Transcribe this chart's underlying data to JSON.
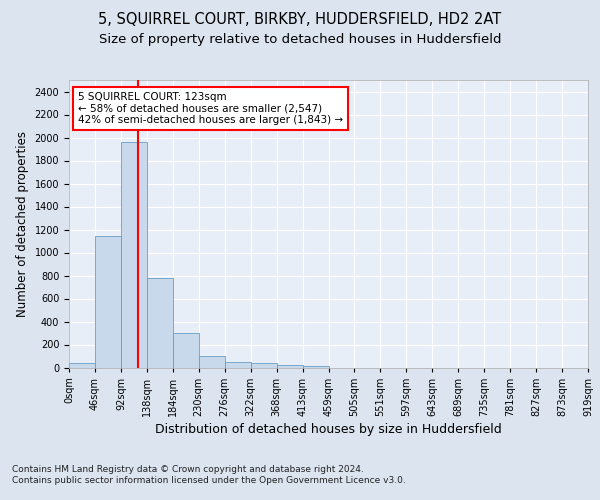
{
  "title1": "5, SQUIRREL COURT, BIRKBY, HUDDERSFIELD, HD2 2AT",
  "title2": "Size of property relative to detached houses in Huddersfield",
  "xlabel": "Distribution of detached houses by size in Huddersfield",
  "ylabel": "Number of detached properties",
  "footnote1": "Contains HM Land Registry data © Crown copyright and database right 2024.",
  "footnote2": "Contains public sector information licensed under the Open Government Licence v3.0.",
  "bin_labels": [
    "0sqm",
    "46sqm",
    "92sqm",
    "138sqm",
    "184sqm",
    "230sqm",
    "276sqm",
    "322sqm",
    "368sqm",
    "413sqm",
    "459sqm",
    "505sqm",
    "551sqm",
    "597sqm",
    "643sqm",
    "689sqm",
    "735sqm",
    "781sqm",
    "827sqm",
    "873sqm",
    "919sqm"
  ],
  "bar_values": [
    35,
    1140,
    1960,
    775,
    300,
    100,
    45,
    35,
    20,
    15,
    0,
    0,
    0,
    0,
    0,
    0,
    0,
    0,
    0,
    0
  ],
  "bar_color": "#c9d9ec",
  "bar_edgecolor": "#6a9ec8",
  "vline_x": 2.67,
  "annotation_line1": "5 SQUIRREL COURT: 123sqm",
  "annotation_line2": "← 58% of detached houses are smaller (2,547)",
  "annotation_line3": "42% of semi-detached houses are larger (1,843) →",
  "annotation_box_color": "white",
  "annotation_box_edgecolor": "red",
  "vline_color": "red",
  "ylim": [
    0,
    2500
  ],
  "yticks": [
    0,
    200,
    400,
    600,
    800,
    1000,
    1200,
    1400,
    1600,
    1800,
    2000,
    2200,
    2400
  ],
  "bg_color": "#dce4f0",
  "plot_bg_color": "#e8eef7",
  "grid_color": "white",
  "title1_fontsize": 10.5,
  "title2_fontsize": 9.5,
  "xlabel_fontsize": 9,
  "ylabel_fontsize": 8.5,
  "tick_fontsize": 7,
  "annotation_fontsize": 7.5,
  "footnote_fontsize": 6.5
}
